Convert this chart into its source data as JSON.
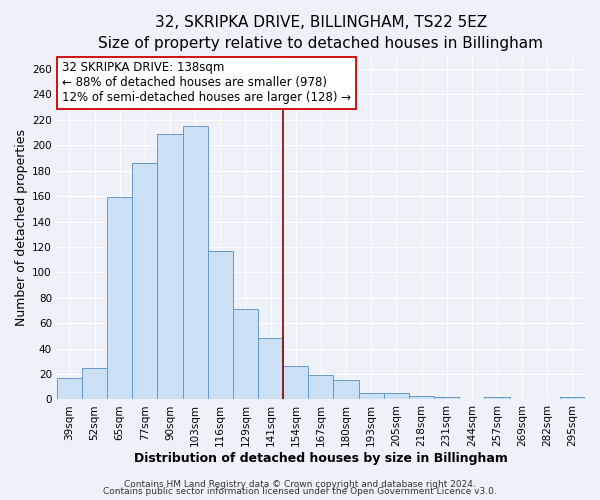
{
  "title": "32, SKRIPKA DRIVE, BILLINGHAM, TS22 5EZ",
  "subtitle": "Size of property relative to detached houses in Billingham",
  "xlabel": "Distribution of detached houses by size in Billingham",
  "ylabel": "Number of detached properties",
  "bar_labels": [
    "39sqm",
    "52sqm",
    "65sqm",
    "77sqm",
    "90sqm",
    "103sqm",
    "116sqm",
    "129sqm",
    "141sqm",
    "154sqm",
    "167sqm",
    "180sqm",
    "193sqm",
    "205sqm",
    "218sqm",
    "231sqm",
    "244sqm",
    "257sqm",
    "269sqm",
    "282sqm",
    "295sqm"
  ],
  "bar_values": [
    17,
    25,
    159,
    186,
    209,
    215,
    117,
    71,
    48,
    26,
    19,
    15,
    5,
    5,
    3,
    2,
    0,
    2,
    0,
    0,
    2
  ],
  "bar_color_fill": "#cce0f5",
  "bar_color_edge": "#6699cc",
  "vline_x": 8.5,
  "vline_color": "#8b0000",
  "annotation_line1": "32 SKRIPKA DRIVE: 138sqm",
  "annotation_line2": "← 88% of detached houses are smaller (978)",
  "annotation_line3": "12% of semi-detached houses are larger (128) →",
  "annotation_box_edgecolor": "#cc0000",
  "annotation_box_facecolor": "#ffffff",
  "ylim": [
    0,
    270
  ],
  "yticks": [
    0,
    20,
    40,
    60,
    80,
    100,
    120,
    140,
    160,
    180,
    200,
    220,
    240,
    260
  ],
  "footer_line1": "Contains HM Land Registry data © Crown copyright and database right 2024.",
  "footer_line2": "Contains public sector information licensed under the Open Government Licence v3.0.",
  "background_color": "#eef2f8",
  "grid_color": "#ffffff",
  "title_fontsize": 11,
  "subtitle_fontsize": 9.5,
  "axis_label_fontsize": 9,
  "tick_fontsize": 7.5,
  "footer_fontsize": 6.5,
  "annotation_fontsize": 8.5
}
